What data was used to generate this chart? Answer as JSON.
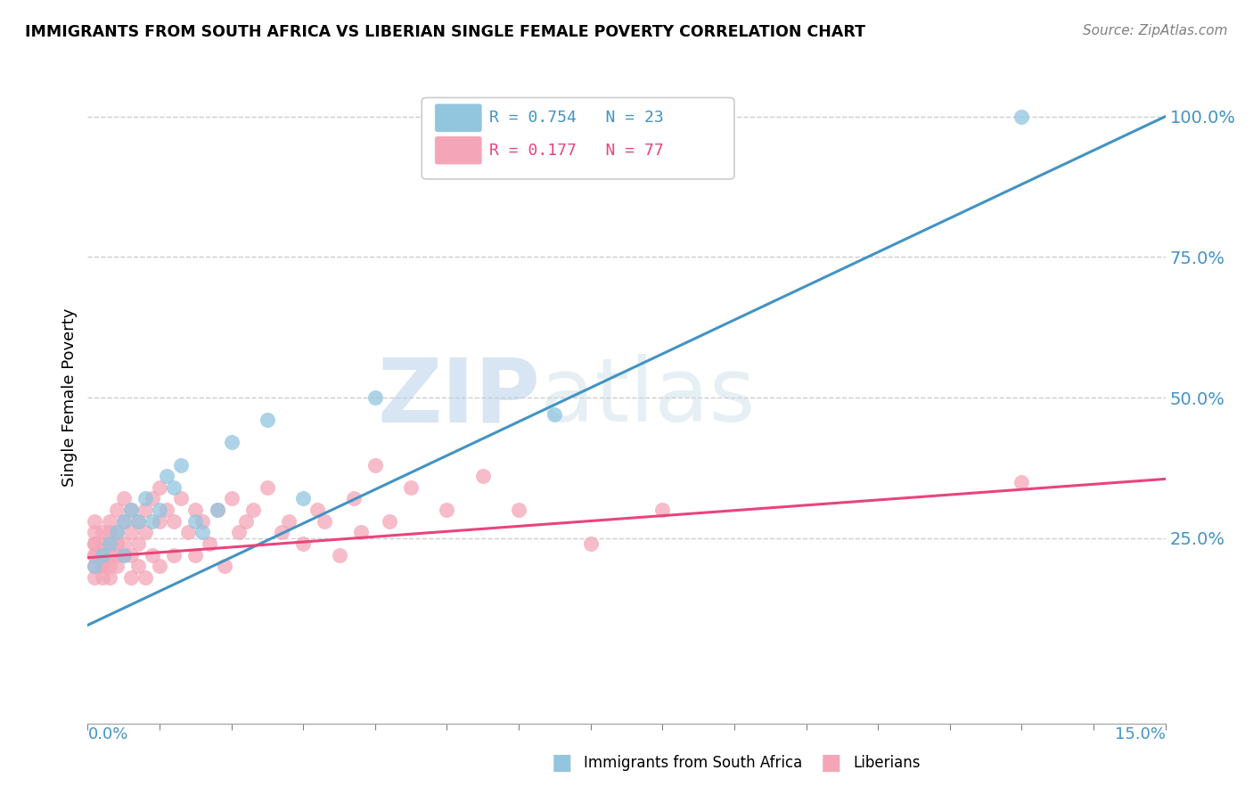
{
  "title": "IMMIGRANTS FROM SOUTH AFRICA VS LIBERIAN SINGLE FEMALE POVERTY CORRELATION CHART",
  "source": "Source: ZipAtlas.com",
  "ylabel": "Single Female Poverty",
  "xlim": [
    0.0,
    0.15
  ],
  "ylim": [
    -0.08,
    1.08
  ],
  "right_yticks": [
    0.25,
    0.5,
    0.75,
    1.0
  ],
  "right_yticklabels": [
    "25.0%",
    "50.0%",
    "75.0%",
    "100.0%"
  ],
  "blue_R": 0.754,
  "blue_N": 23,
  "pink_R": 0.177,
  "pink_N": 77,
  "blue_color": "#92c5de",
  "pink_color": "#f4a6b8",
  "blue_line_color": "#4393c3",
  "pink_line_color": "#e8457a",
  "legend_label_blue": "Immigrants from South Africa",
  "legend_label_pink": "Liberians",
  "blue_line_x0": 0.0,
  "blue_line_y0": 0.095,
  "blue_line_x1": 0.15,
  "blue_line_y1": 1.0,
  "pink_line_x0": 0.0,
  "pink_line_y0": 0.215,
  "pink_line_x1": 0.15,
  "pink_line_y1": 0.355,
  "blue_points_x": [
    0.001,
    0.002,
    0.003,
    0.004,
    0.005,
    0.005,
    0.006,
    0.007,
    0.008,
    0.009,
    0.01,
    0.011,
    0.012,
    0.013,
    0.015,
    0.016,
    0.018,
    0.02,
    0.025,
    0.03,
    0.04,
    0.065,
    0.13
  ],
  "blue_points_y": [
    0.2,
    0.22,
    0.24,
    0.26,
    0.28,
    0.22,
    0.3,
    0.28,
    0.32,
    0.28,
    0.3,
    0.36,
    0.34,
    0.38,
    0.28,
    0.26,
    0.3,
    0.42,
    0.46,
    0.32,
    0.5,
    0.47,
    1.0
  ],
  "pink_points_x": [
    0.001,
    0.001,
    0.001,
    0.001,
    0.001,
    0.001,
    0.001,
    0.001,
    0.002,
    0.002,
    0.002,
    0.002,
    0.002,
    0.002,
    0.003,
    0.003,
    0.003,
    0.003,
    0.003,
    0.003,
    0.004,
    0.004,
    0.004,
    0.004,
    0.004,
    0.005,
    0.005,
    0.005,
    0.005,
    0.006,
    0.006,
    0.006,
    0.006,
    0.007,
    0.007,
    0.007,
    0.008,
    0.008,
    0.008,
    0.009,
    0.009,
    0.01,
    0.01,
    0.01,
    0.011,
    0.012,
    0.012,
    0.013,
    0.014,
    0.015,
    0.015,
    0.016,
    0.017,
    0.018,
    0.019,
    0.02,
    0.021,
    0.022,
    0.023,
    0.025,
    0.027,
    0.028,
    0.03,
    0.032,
    0.033,
    0.035,
    0.037,
    0.038,
    0.04,
    0.042,
    0.045,
    0.05,
    0.055,
    0.06,
    0.07,
    0.08,
    0.13
  ],
  "pink_points_y": [
    0.22,
    0.24,
    0.22,
    0.2,
    0.24,
    0.26,
    0.28,
    0.18,
    0.2,
    0.22,
    0.24,
    0.26,
    0.18,
    0.2,
    0.24,
    0.22,
    0.2,
    0.26,
    0.28,
    0.18,
    0.22,
    0.24,
    0.2,
    0.26,
    0.3,
    0.24,
    0.28,
    0.22,
    0.32,
    0.26,
    0.3,
    0.22,
    0.18,
    0.28,
    0.24,
    0.2,
    0.3,
    0.26,
    0.18,
    0.32,
    0.22,
    0.28,
    0.34,
    0.2,
    0.3,
    0.28,
    0.22,
    0.32,
    0.26,
    0.3,
    0.22,
    0.28,
    0.24,
    0.3,
    0.2,
    0.32,
    0.26,
    0.28,
    0.3,
    0.34,
    0.26,
    0.28,
    0.24,
    0.3,
    0.28,
    0.22,
    0.32,
    0.26,
    0.38,
    0.28,
    0.34,
    0.3,
    0.36,
    0.3,
    0.24,
    0.3,
    0.35
  ],
  "watermark_zip": "ZIP",
  "watermark_atlas": "atlas",
  "background_color": "#ffffff",
  "grid_color": "#cccccc"
}
